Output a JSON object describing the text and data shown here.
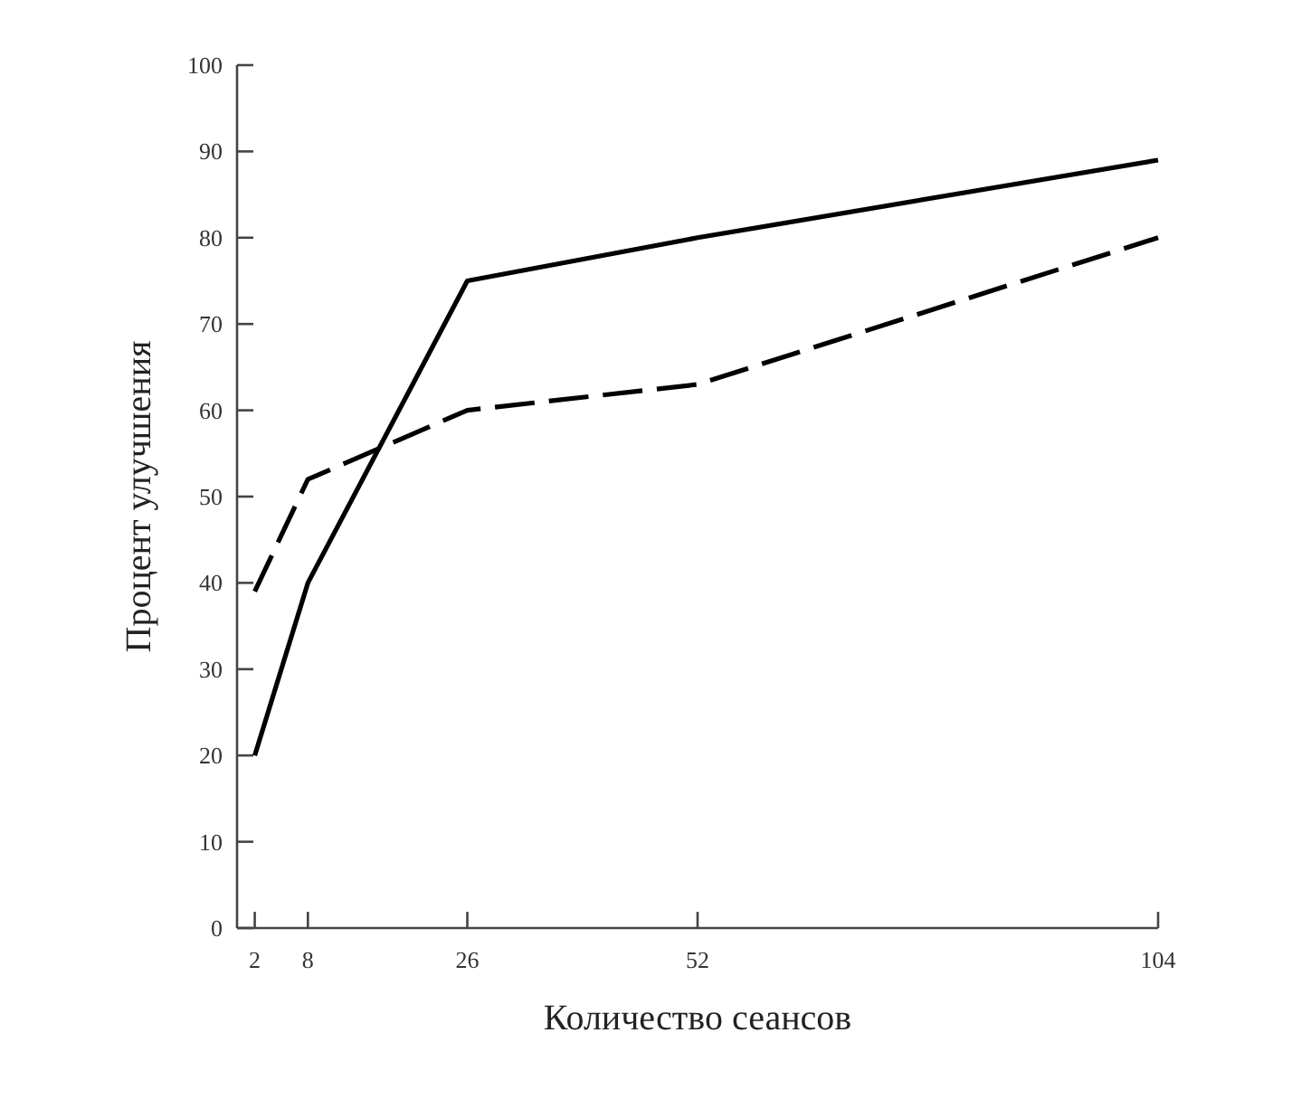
{
  "chart_data": {
    "type": "line",
    "xlabel": "Количество сеансов",
    "ylabel": "Процент улучшения",
    "x": [
      2,
      8,
      26,
      52,
      104
    ],
    "xlim": [
      0,
      104
    ],
    "xticks": [
      2,
      8,
      26,
      52,
      104
    ],
    "ylim": [
      0,
      100
    ],
    "yticks": [
      0,
      10,
      20,
      30,
      40,
      50,
      60,
      70,
      80,
      90,
      100
    ],
    "grid": false,
    "marker": "none",
    "series": [
      {
        "color": "#000000",
        "line_style": "solid",
        "values": [
          20,
          40,
          75,
          80,
          89
        ]
      },
      {
        "color": "#000000",
        "line_style": "dashed",
        "values": [
          39,
          52,
          60,
          63,
          80
        ]
      }
    ]
  }
}
